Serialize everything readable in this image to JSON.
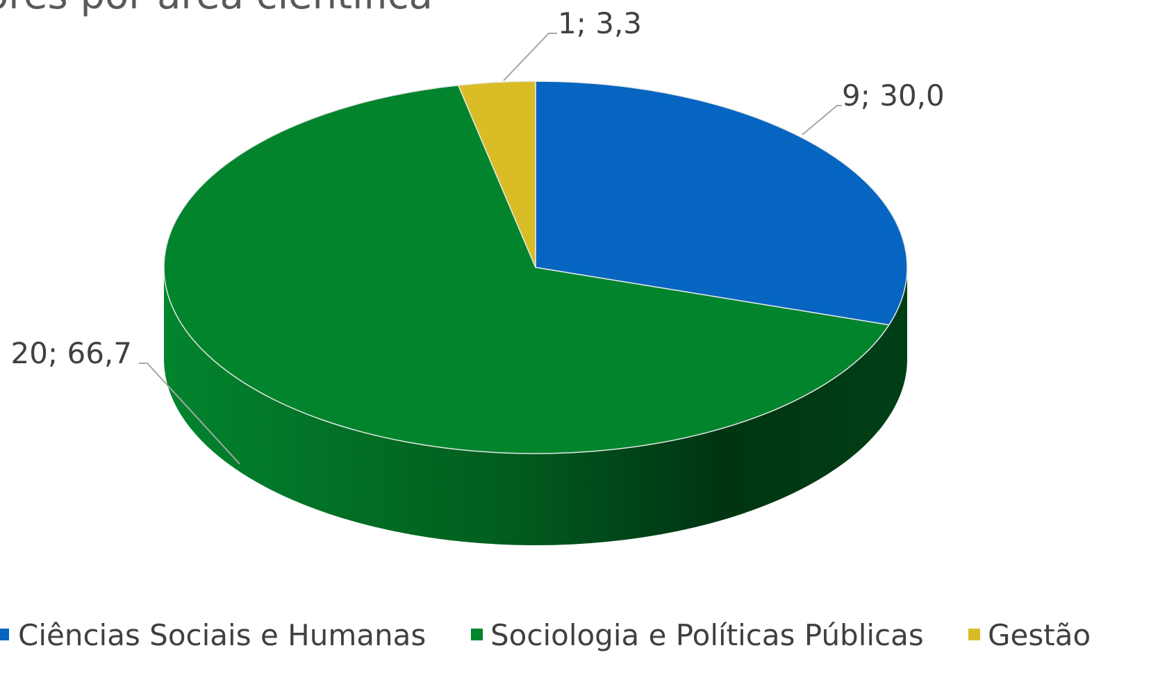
{
  "chart_data": {
    "type": "pie",
    "title": "ores por área científica",
    "legend_position": "bottom",
    "slices": [
      {
        "name": "Ciências Sociais e Humanas",
        "value": 9,
        "percent": 30.0,
        "label": "9; 30,0",
        "color": "#0565c0"
      },
      {
        "name": "Sociologia e Políticas Públicas",
        "value": 20,
        "percent": 66.7,
        "label": "20; 66,7",
        "color": "#02842d"
      },
      {
        "name": "Gestão",
        "value": 1,
        "percent": 3.3,
        "label": "1; 3,3",
        "color": "#d9bc26"
      }
    ]
  }
}
